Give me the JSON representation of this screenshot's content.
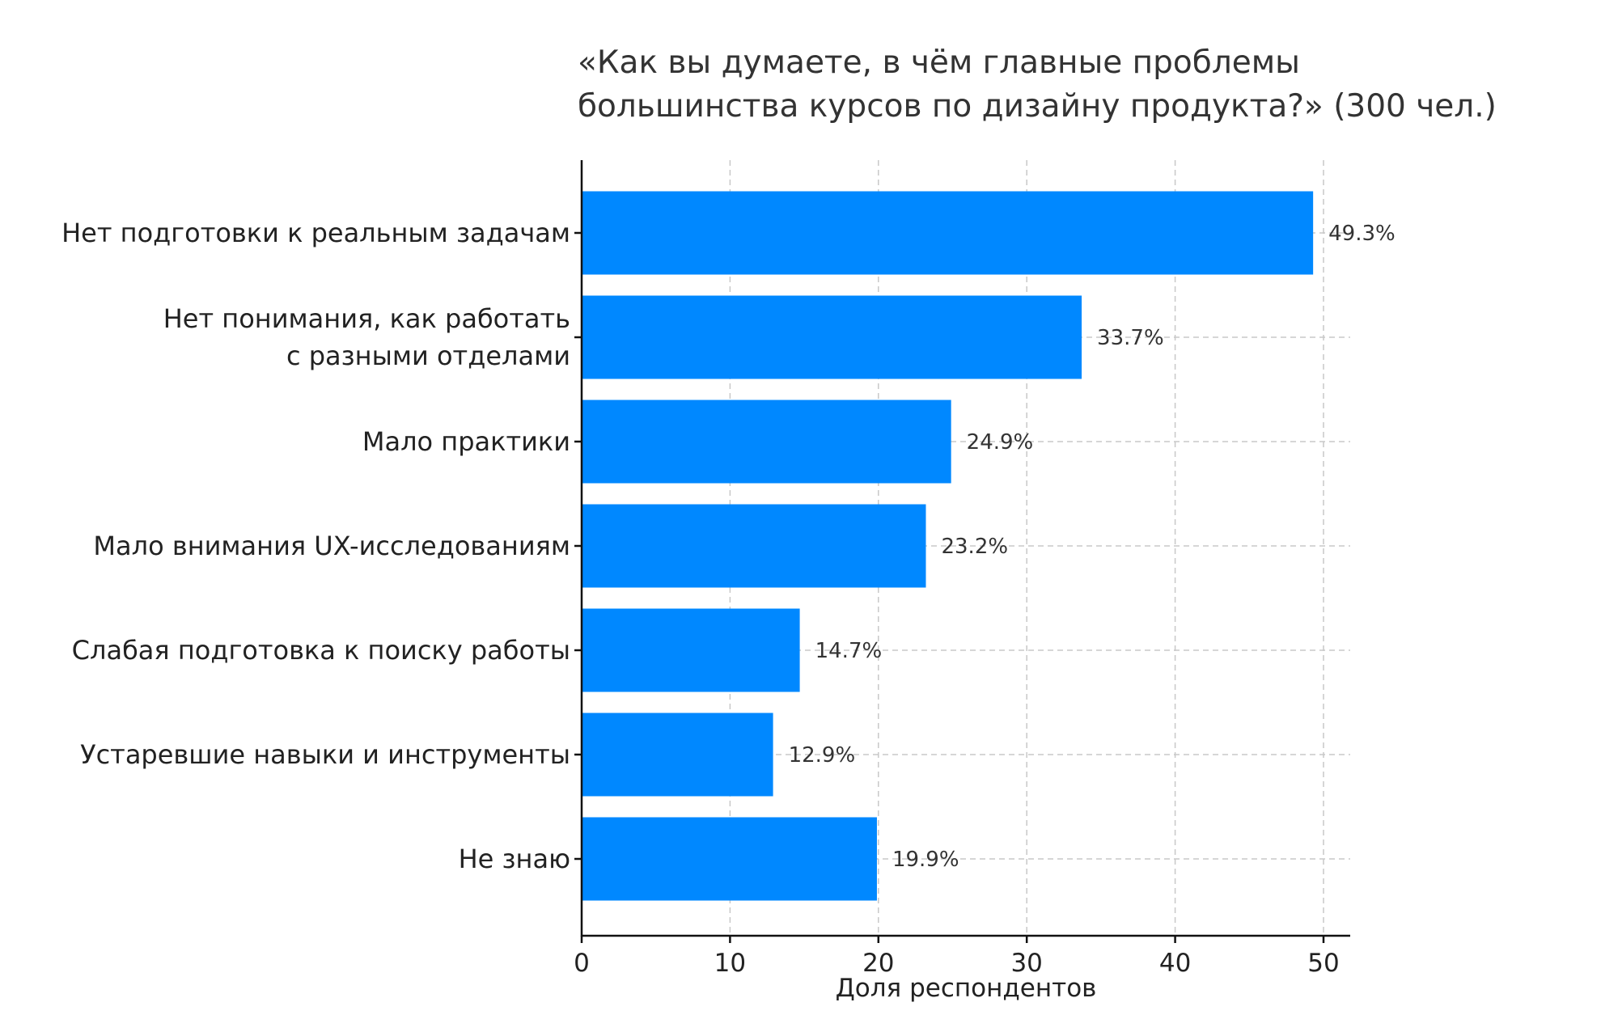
{
  "chart_data": {
    "type": "bar",
    "orientation": "horizontal",
    "title_lines": [
      "«Как вы думаете, в чём главные проблемы",
      "большинства курсов по дизайну продукта?» (300 чел.)"
    ],
    "categories": [
      [
        "Нет подготовки к реальным задачам"
      ],
      [
        "Нет понимания, как работать",
        "с разными отделами"
      ],
      [
        "Мало практики"
      ],
      [
        "Мало внимания UX-исследованиям"
      ],
      [
        "Слабая подготовка к поиску работы"
      ],
      [
        "Устаревшие навыки и инструменты"
      ],
      [
        "Не знаю"
      ]
    ],
    "values": [
      49.3,
      33.7,
      24.9,
      23.2,
      14.7,
      12.9,
      19.9
    ],
    "value_labels": [
      "49.3%",
      "33.7%",
      "24.9%",
      "23.2%",
      "14.7%",
      "12.9%",
      "19.9%"
    ],
    "xlabel": "Доля респондентов",
    "xlim": [
      0,
      51.8
    ],
    "xticks": [
      0,
      10,
      20,
      30,
      40,
      50
    ],
    "xtick_labels": [
      "0",
      "10",
      "20",
      "30",
      "40",
      "50"
    ],
    "grid": true,
    "bar_color": "#0088FF"
  }
}
